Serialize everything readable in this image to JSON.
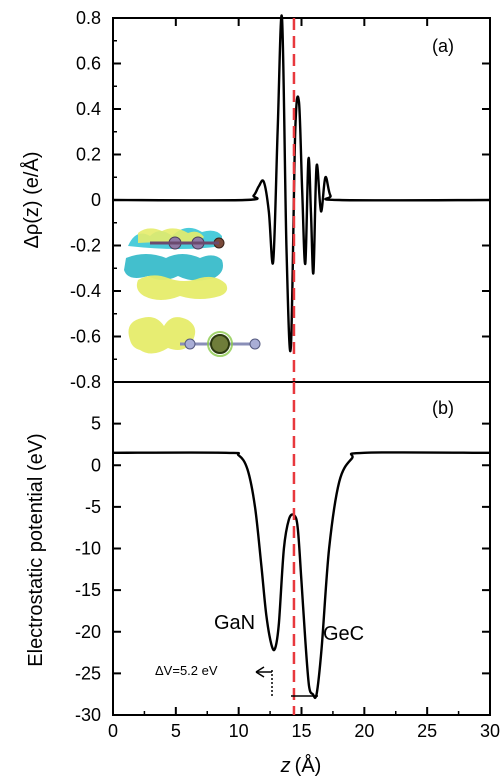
{
  "chart_data": [
    {
      "type": "line",
      "panel_label": "(a)",
      "ylabel": "Δρ(z) (e/Å)",
      "xlim": [
        0,
        30
      ],
      "ylim": [
        -0.8,
        0.8
      ],
      "y_ticks": [
        "0.8",
        "0.6",
        "0.4",
        "0.2",
        "0",
        "-0.2",
        "-0.4",
        "-0.6",
        "-0.8"
      ],
      "y_tick_values": [
        0.8,
        0.6,
        0.4,
        0.2,
        0,
        -0.2,
        -0.4,
        -0.6,
        -0.8
      ],
      "series": [
        {
          "color": "#000000",
          "x": [
            0,
            10.5,
            11.2,
            11.6,
            12.0,
            12.4,
            12.75,
            13.1,
            13.45,
            13.8,
            14.15,
            14.5,
            14.8,
            15.05,
            15.3,
            15.55,
            15.75,
            15.95,
            16.2,
            16.55,
            16.9,
            17.3,
            18.0,
            30
          ],
          "y": [
            0,
            0,
            0.02,
            0.06,
            0.08,
            -0.05,
            -0.27,
            0.3,
            0.8,
            -0.2,
            -0.65,
            0.3,
            0.43,
            0.05,
            -0.28,
            0.18,
            -0.05,
            -0.32,
            0.15,
            -0.05,
            0.1,
            0.02,
            0,
            0
          ]
        }
      ],
      "reference_line_x": 14.4,
      "reference_line_color": "#e8383d",
      "inset": {
        "description_colors": {
          "isosurface_cyan": "#39c6d6",
          "isosurface_yellow": "#e6ec6a",
          "ga_atom": "#6f7d3a",
          "n_atom": "#a9aed6",
          "ge_atom": "#8f7aa5",
          "c_atom": "#7a4a3a"
        }
      }
    },
    {
      "type": "line",
      "panel_label": "(b)",
      "ylabel": "Electrostatic potential (eV)",
      "xlabel": "z (Å)",
      "xlim": [
        0,
        30
      ],
      "ylim": [
        -30,
        10
      ],
      "x_ticks": [
        "0",
        "5",
        "10",
        "15",
        "20",
        "25",
        "30"
      ],
      "x_tick_values": [
        0,
        5,
        10,
        15,
        20,
        25,
        30
      ],
      "y_ticks": [
        "5",
        "0",
        "-5",
        "-10",
        "-15",
        "-20",
        "-25",
        "-30"
      ],
      "y_tick_values": [
        5,
        0,
        -5,
        -10,
        -15,
        -20,
        -25,
        -30
      ],
      "series": [
        {
          "color": "#000000",
          "x": [
            0,
            9.0,
            10.0,
            10.7,
            11.3,
            11.8,
            12.2,
            12.6,
            12.9,
            13.2,
            13.6,
            14.0,
            14.4,
            14.7,
            15.0,
            15.3,
            15.6,
            15.9,
            16.2,
            16.6,
            17.2,
            18.0,
            19.0,
            20.0,
            30
          ],
          "y": [
            1.5,
            1.5,
            1.2,
            -0.5,
            -5,
            -12,
            -18,
            -21.5,
            -22,
            -19,
            -10,
            -6.5,
            -6,
            -7.5,
            -14,
            -21,
            -26.5,
            -27.5,
            -27.5,
            -22,
            -10,
            -2,
            0.8,
            1.5,
            1.5
          ]
        }
      ],
      "reference_line_x": 14.4,
      "reference_line_color": "#e8383d",
      "annotations": {
        "left_label": "GaN",
        "right_label": "GeC",
        "delta_v_label": "ΔV=5.2 eV"
      }
    }
  ]
}
